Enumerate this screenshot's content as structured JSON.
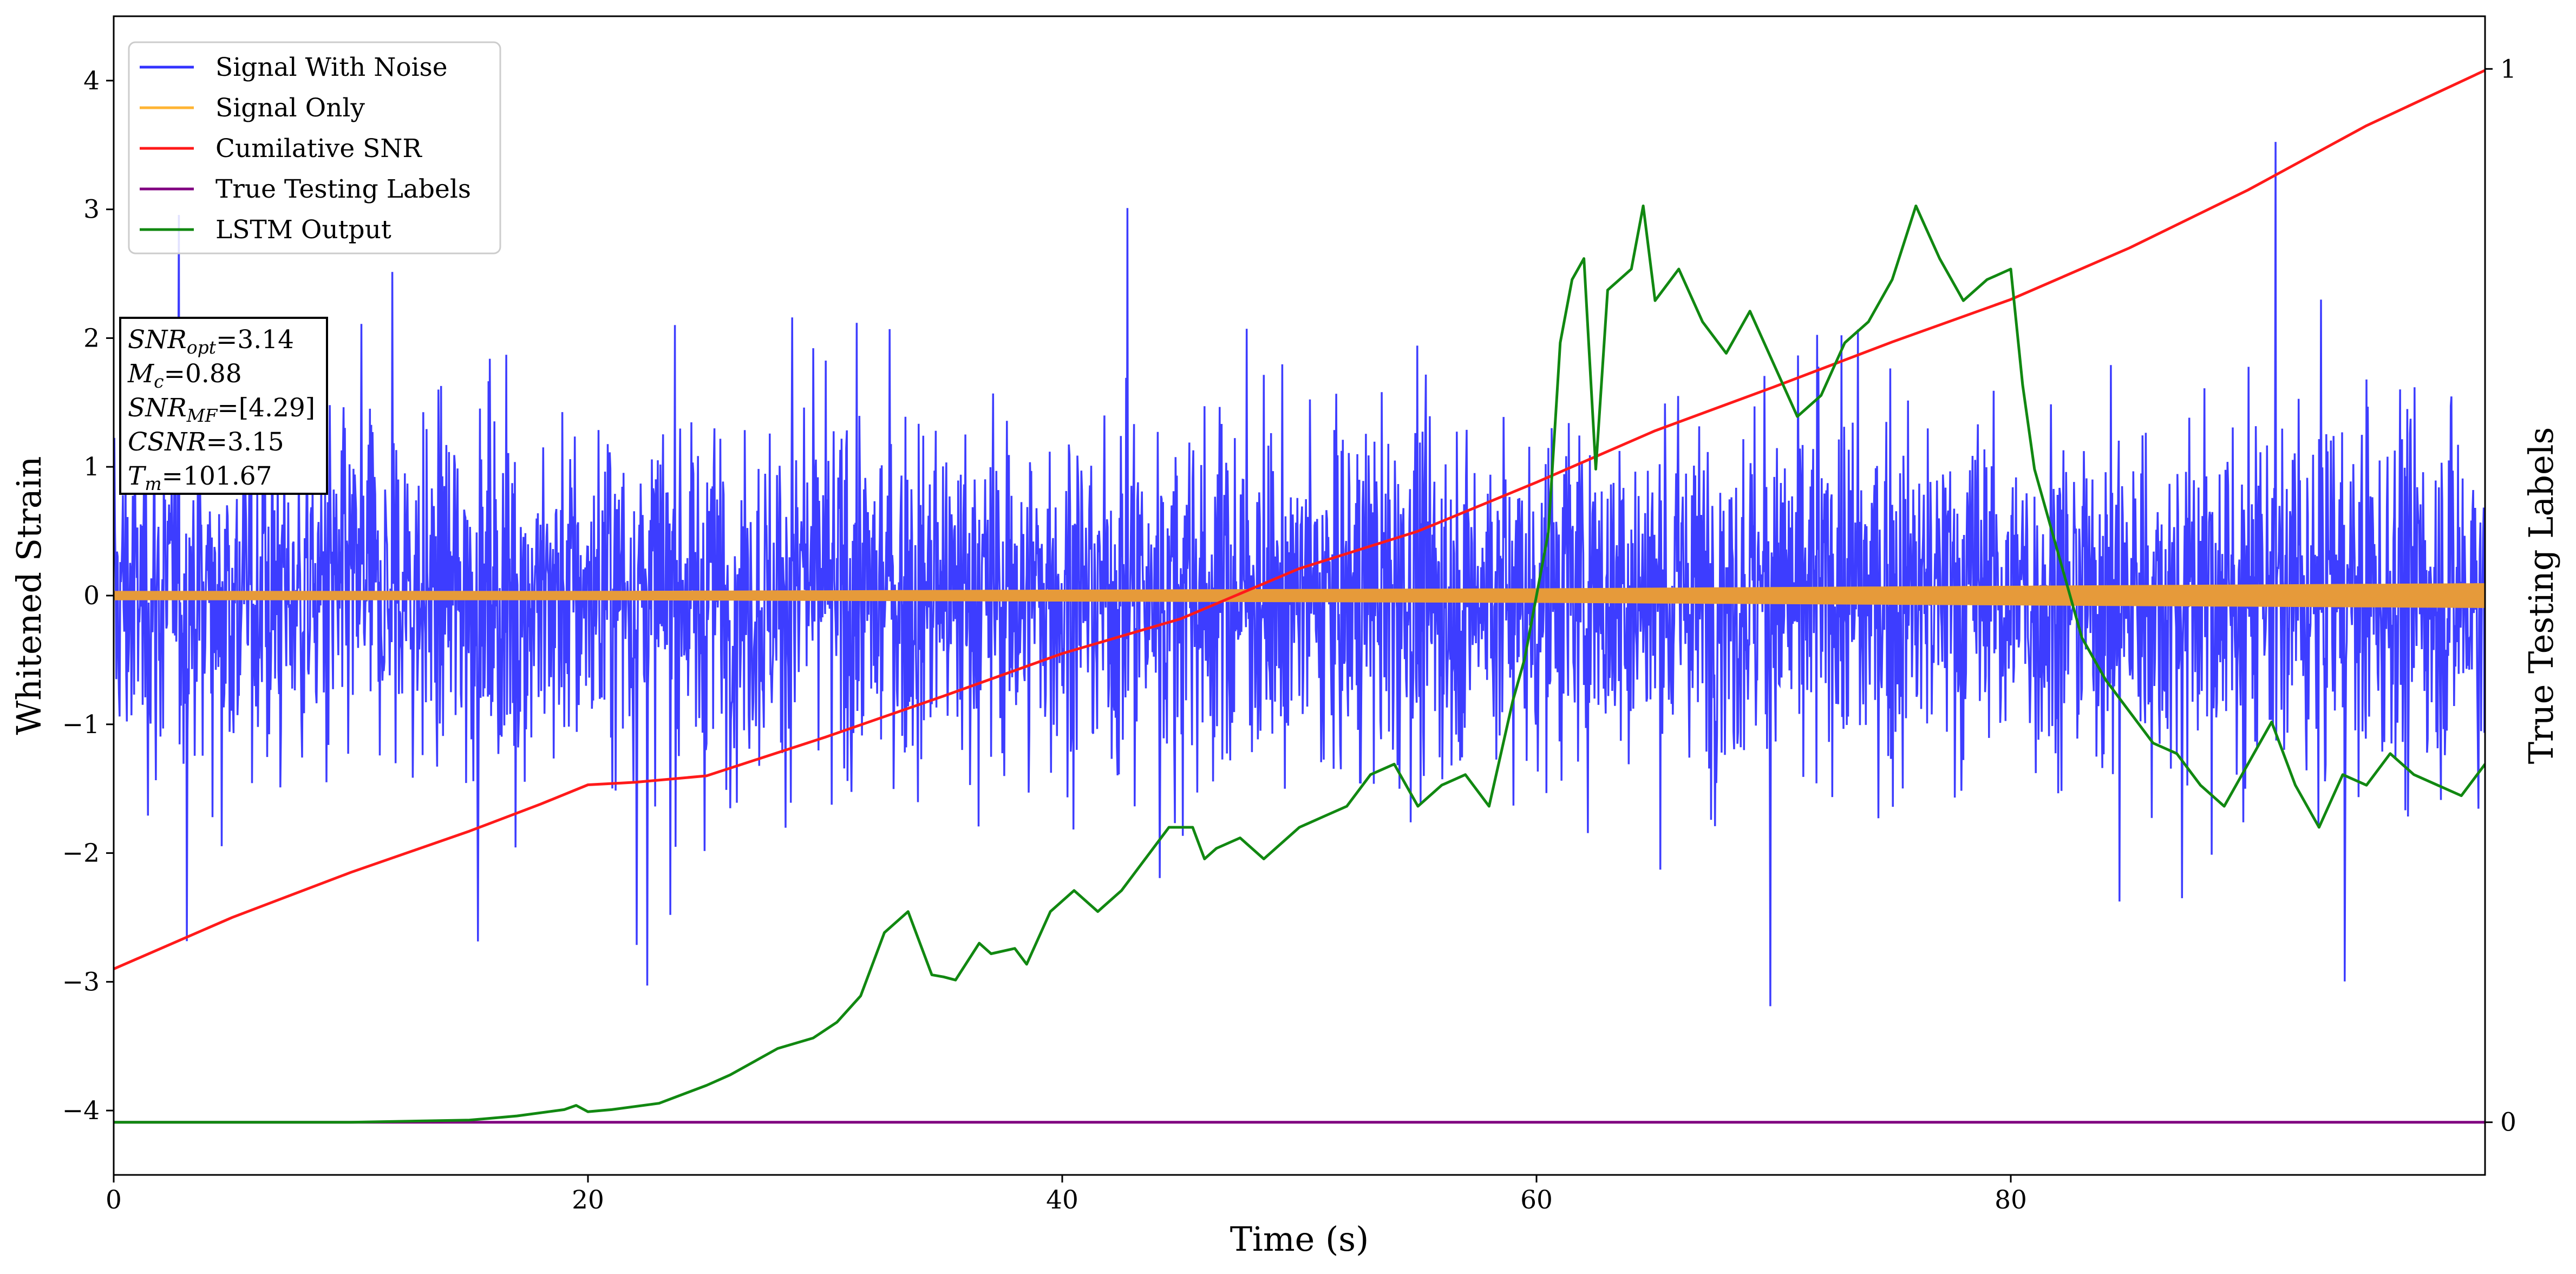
{
  "chart_data": {
    "type": "line",
    "xlabel": "Time (s)",
    "ylabel_left": "Whitened Strain",
    "ylabel_right": "True Testing Labels",
    "xlim": [
      0,
      100
    ],
    "ylim_left": [
      -4.5,
      4.5
    ],
    "ylim_right": [
      -0.05,
      1.05
    ],
    "x_ticks": [
      0,
      20,
      40,
      60,
      80
    ],
    "x_tick_labels": [
      "0",
      "20",
      "40",
      "60",
      "80"
    ],
    "y_left_ticks": [
      -4,
      -3,
      -2,
      -1,
      0,
      1,
      2,
      3,
      4
    ],
    "y_left_tick_labels": [
      "−4",
      "−3",
      "−2",
      "−1",
      "0",
      "1",
      "2",
      "3",
      "4"
    ],
    "y_right_ticks": [
      0,
      1
    ],
    "y_right_tick_labels": [
      "0",
      "1"
    ],
    "grid": false,
    "legend": {
      "position": "top-left",
      "entries": [
        {
          "label": "Signal With Noise",
          "color": "#3333ff"
        },
        {
          "label": "Signal Only",
          "color": "#ffb433"
        },
        {
          "label": "Cumilative SNR",
          "color": "#ff1a1a"
        },
        {
          "label": "True Testing Labels",
          "color": "#800080"
        },
        {
          "label": "LSTM Output",
          "color": "#118811"
        }
      ]
    },
    "annotation": [
      {
        "base": "SNR",
        "sub": "opt",
        "value": "=3.14"
      },
      {
        "base": "M",
        "sub": "c",
        "value": "=0.88"
      },
      {
        "base": "SNR",
        "sub": "MF",
        "value": "=[4.29]"
      },
      {
        "base": "CSNR",
        "sub": "",
        "value": "=3.15"
      },
      {
        "base": "T",
        "sub": "m",
        "value": "=101.67"
      }
    ],
    "series": [
      {
        "name": "Signal With Noise",
        "axis": "left",
        "style": "noise",
        "noise_range": [
          -4.1,
          4.1
        ],
        "typical_range": [
          -2.0,
          2.0
        ],
        "color": "#3333ff"
      },
      {
        "name": "Signal Only",
        "axis": "left",
        "style": "band",
        "x": [
          0,
          20,
          40,
          60,
          80,
          100
        ],
        "amplitude": [
          0.03,
          0.03,
          0.04,
          0.05,
          0.07,
          0.09
        ],
        "color": "#e69a3a"
      },
      {
        "name": "Cumilative SNR",
        "axis": "left",
        "x": [
          0,
          5,
          10,
          15,
          18,
          20,
          22,
          25,
          30,
          35,
          40,
          45,
          50,
          55,
          60,
          65,
          70,
          75,
          80,
          85,
          90,
          95,
          100
        ],
        "y": [
          -2.9,
          -2.5,
          -2.15,
          -1.83,
          -1.62,
          -1.47,
          -1.45,
          -1.4,
          -1.1,
          -0.78,
          -0.45,
          -0.18,
          0.21,
          0.5,
          0.88,
          1.28,
          1.62,
          1.97,
          2.3,
          2.7,
          3.15,
          3.65,
          4.08
        ],
        "color": "#ff1a1a"
      },
      {
        "name": "True Testing Labels",
        "axis": "right",
        "x": [
          0,
          100
        ],
        "y": [
          0,
          0
        ],
        "color": "#800080"
      },
      {
        "name": "LSTM Output",
        "axis": "right",
        "x": [
          0,
          10,
          15,
          17,
          19,
          19.5,
          20,
          21,
          23,
          25,
          26,
          28,
          29.5,
          30.5,
          31.5,
          32.5,
          33.5,
          34.5,
          35,
          35.5,
          36.5,
          37,
          38,
          38.5,
          39.5,
          40.5,
          41.5,
          42.5,
          43.5,
          44.5,
          45.5,
          46,
          46.5,
          47.5,
          48.5,
          49,
          50,
          51,
          52,
          53,
          54,
          55,
          56,
          57,
          58,
          58.5,
          59,
          59.5,
          60,
          60.5,
          61,
          61.5,
          62,
          62.5,
          63,
          64,
          64.5,
          65,
          66,
          67,
          68,
          69,
          70,
          71,
          72,
          73,
          74,
          75,
          76,
          77,
          78,
          79,
          80,
          80.5,
          81,
          82,
          83,
          84,
          85,
          86,
          87,
          88,
          89,
          90,
          91,
          92,
          93,
          94,
          95,
          96,
          97,
          98,
          99,
          100
        ],
        "y": [
          0,
          0,
          0.002,
          0.006,
          0.012,
          0.016,
          0.01,
          0.012,
          0.018,
          0.035,
          0.045,
          0.07,
          0.08,
          0.095,
          0.12,
          0.18,
          0.2,
          0.14,
          0.138,
          0.135,
          0.17,
          0.16,
          0.165,
          0.15,
          0.2,
          0.22,
          0.2,
          0.22,
          0.25,
          0.28,
          0.28,
          0.25,
          0.26,
          0.27,
          0.25,
          0.26,
          0.28,
          0.29,
          0.3,
          0.33,
          0.34,
          0.3,
          0.32,
          0.33,
          0.3,
          0.35,
          0.4,
          0.44,
          0.5,
          0.56,
          0.74,
          0.8,
          0.82,
          0.62,
          0.79,
          0.81,
          0.87,
          0.78,
          0.81,
          0.76,
          0.73,
          0.77,
          0.72,
          0.67,
          0.69,
          0.74,
          0.76,
          0.8,
          0.87,
          0.82,
          0.78,
          0.8,
          0.81,
          0.7,
          0.62,
          0.54,
          0.46,
          0.42,
          0.39,
          0.36,
          0.35,
          0.32,
          0.3,
          0.34,
          0.38,
          0.32,
          0.28,
          0.33,
          0.32,
          0.35,
          0.33,
          0.32,
          0.31,
          0.34
        ]
      }
    ]
  }
}
